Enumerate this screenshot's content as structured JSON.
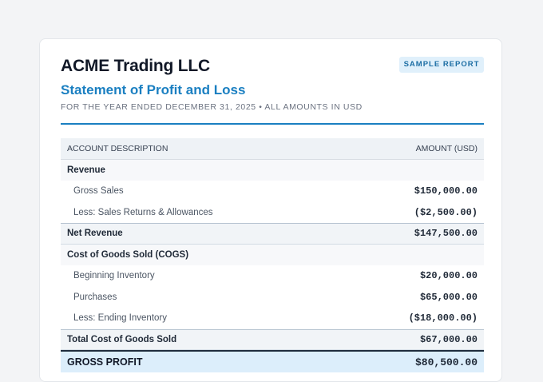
{
  "report": {
    "company": "ACME Trading LLC",
    "badge": "SAMPLE REPORT",
    "title": "Statement of Profit and Loss",
    "period": "FOR THE YEAR ENDED DECEMBER 31, 2025 • ALL AMOUNTS IN USD"
  },
  "table": {
    "col_desc": "ACCOUNT DESCRIPTION",
    "col_amount": "AMOUNT (USD)",
    "rows": [
      {
        "type": "section",
        "desc": "Revenue",
        "amount": ""
      },
      {
        "type": "line",
        "desc": "Gross Sales",
        "amount": "$150,000.00"
      },
      {
        "type": "line",
        "desc": "Less: Sales Returns & Allowances",
        "amount": "($2,500.00)"
      },
      {
        "type": "subtotal",
        "desc": "Net Revenue",
        "amount": "$147,500.00"
      },
      {
        "type": "section",
        "desc": "Cost of Goods Sold (COGS)",
        "amount": ""
      },
      {
        "type": "line",
        "desc": "Beginning Inventory",
        "amount": "$20,000.00"
      },
      {
        "type": "line",
        "desc": "Purchases",
        "amount": "$65,000.00"
      },
      {
        "type": "line",
        "desc": "Less: Ending Inventory",
        "amount": "($18,000.00)"
      },
      {
        "type": "subtotal",
        "desc": "Total Cost of Goods Sold",
        "amount": "$67,000.00"
      },
      {
        "type": "gross",
        "desc": "GROSS PROFIT",
        "amount": "$80,500.00"
      }
    ]
  },
  "colors": {
    "accent": "#1a7fc1",
    "badge_bg": "#e0f0fb",
    "gross_bg": "#dceefb"
  }
}
